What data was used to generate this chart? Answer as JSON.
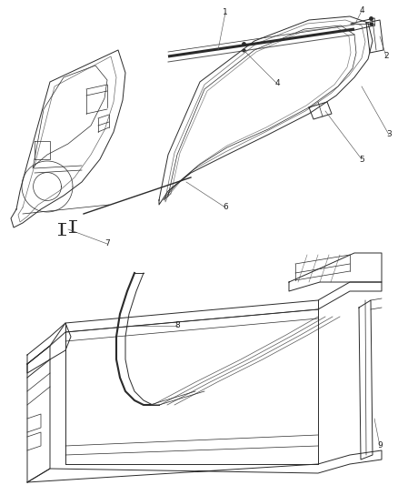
{
  "background_color": "#ffffff",
  "line_color": "#2a2a2a",
  "label_color": "#444444",
  "figsize": [
    4.38,
    5.33
  ],
  "dpi": 100
}
